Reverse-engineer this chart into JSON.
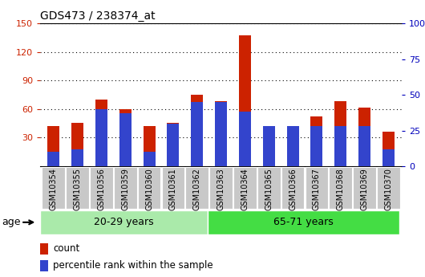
{
  "title": "GDS473 / 238374_at",
  "samples": [
    "GSM10354",
    "GSM10355",
    "GSM10356",
    "GSM10359",
    "GSM10360",
    "GSM10361",
    "GSM10362",
    "GSM10363",
    "GSM10364",
    "GSM10365",
    "GSM10366",
    "GSM10367",
    "GSM10368",
    "GSM10369",
    "GSM10370"
  ],
  "counts": [
    42,
    46,
    70,
    60,
    42,
    46,
    75,
    68,
    138,
    38,
    42,
    52,
    68,
    62,
    36
  ],
  "percentiles": [
    10,
    12,
    40,
    37,
    10,
    30,
    45,
    45,
    38,
    28,
    28,
    28,
    28,
    28,
    12
  ],
  "group1_label": "20-29 years",
  "group1_count": 7,
  "group2_label": "65-71 years",
  "group2_count": 8,
  "age_label": "age",
  "ylim_left": [
    0,
    150
  ],
  "ylim_right": [
    0,
    100
  ],
  "yticks_left": [
    30,
    60,
    90,
    120,
    150
  ],
  "yticks_right": [
    0,
    25,
    50,
    75,
    100
  ],
  "bar_color_count": "#cc2200",
  "bar_color_pct": "#3344cc",
  "bg_xticklabel": "#c8c8c8",
  "bg_group1": "#aaeaaa",
  "bg_group2": "#44dd44",
  "left_tick_color": "#cc2200",
  "right_tick_color": "#0000bb",
  "legend_count": "count",
  "legend_pct": "percentile rank within the sample",
  "title_fontsize": 10,
  "bar_width": 0.5
}
